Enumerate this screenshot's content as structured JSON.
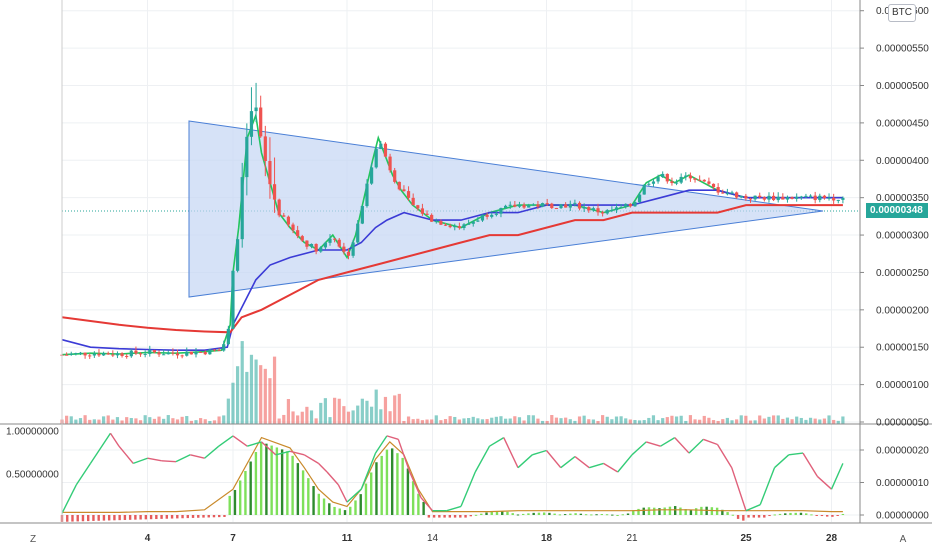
{
  "quote_currency": "BTC",
  "last_price": "0.00000348",
  "corner_buttons": {
    "left": "Z",
    "right": "A"
  },
  "main_axis": {
    "ticks": [
      "0.00000050",
      "0.00000100",
      "0.00000150",
      "0.00000200",
      "0.00000250",
      "0.00000300",
      "0.00000350",
      "0.00000400",
      "0.00000450",
      "0.00000500",
      "0.00000550",
      "0.00000600"
    ]
  },
  "osc_axis_right": {
    "ticks": [
      "0.00000000",
      "0.00000010",
      "0.00000020"
    ]
  },
  "osc_axis_left": {
    "ticks": [
      "1.00000000",
      "0.50000000"
    ]
  },
  "time_axis": {
    "labels": [
      "4",
      "7",
      "11",
      "14",
      "18",
      "21",
      "25",
      "28"
    ],
    "bold_labels": [
      "4",
      "7",
      "11",
      "18",
      "25",
      "28"
    ]
  },
  "colors": {
    "bull": "#26a69a",
    "bear": "#ef5350",
    "ma_fast": "#22c55e",
    "ma_mid": "#3b3bd6",
    "ma_slow": "#e53935",
    "triangle_fill": "#c5d6f4",
    "triangle_line": "#4a7fd6",
    "osc_up": "#33cc77",
    "osc_down": "#e0607a",
    "osc_slow": "#c98a2b",
    "hist_pos_bright": "#7ee05a",
    "hist_pos_dark": "#2e8b2e",
    "hist_neg": "#e55b5b"
  },
  "chart_data": [
    {
      "type": "line",
      "title": "",
      "ylim": [
        5e-07,
        6e-06
      ],
      "x_domain": [
        1,
        29
      ],
      "x_ticks": [
        4,
        7,
        11,
        14,
        18,
        21,
        25,
        28
      ],
      "grid": true,
      "series": [
        {
          "x": [
            1,
            2,
            3,
            4,
            5,
            6,
            6.6,
            6.9,
            7,
            7.2,
            7.5,
            7.8,
            8,
            8.3,
            8.6,
            9,
            9.5,
            10,
            10.5,
            11,
            11.3,
            11.6,
            11.9,
            12.1,
            12.3,
            12.6,
            12.9,
            13.3,
            14,
            15,
            16,
            17,
            18,
            19,
            20,
            21,
            21.5,
            22,
            22.5,
            23,
            23.5,
            24,
            25,
            26,
            27,
            28,
            28.4
          ],
          "values": [
            1.4e-06,
            1.42e-06,
            1.41e-06,
            1.43e-06,
            1.42e-06,
            1.44e-06,
            1.46e-06,
            1.8e-06,
            2.5e-06,
            3.1e-06,
            4.3e-06,
            4.6e-06,
            4.1e-06,
            3.7e-06,
            3.3e-06,
            3.1e-06,
            2.9e-06,
            2.8e-06,
            3e-06,
            2.7e-06,
            3e-06,
            3.5e-06,
            4e-06,
            4.3e-06,
            4.1e-06,
            3.8e-06,
            3.6e-06,
            3.4e-06,
            3.2e-06,
            3.1e-06,
            3.3e-06,
            3.4e-06,
            3.4e-06,
            3.4e-06,
            3.3e-06,
            3.4e-06,
            3.7e-06,
            3.8e-06,
            3.7e-06,
            3.8e-06,
            3.7e-06,
            3.6e-06,
            3.5e-06,
            3.5e-06,
            3.5e-06,
            3.5e-06,
            3.5e-06
          ]
        },
        {
          "x": [
            1,
            2,
            3,
            4,
            5,
            6,
            6.8,
            7,
            7.4,
            7.8,
            8.3,
            9,
            10,
            11,
            11.5,
            12,
            12.4,
            13,
            14,
            15,
            16,
            17,
            18,
            19,
            20,
            21,
            22,
            23,
            24,
            25,
            26,
            27,
            28,
            28.4
          ],
          "values": [
            1.6e-06,
            1.5e-06,
            1.48e-06,
            1.47e-06,
            1.46e-06,
            1.46e-06,
            1.5e-06,
            1.8e-06,
            2.1e-06,
            2.4e-06,
            2.6e-06,
            2.7e-06,
            2.8e-06,
            2.8e-06,
            2.9e-06,
            3.1e-06,
            3.2e-06,
            3.3e-06,
            3.2e-06,
            3.2e-06,
            3.3e-06,
            3.3e-06,
            3.4e-06,
            3.4e-06,
            3.4e-06,
            3.4e-06,
            3.5e-06,
            3.6e-06,
            3.6e-06,
            3.5e-06,
            3.5e-06,
            3.5e-06,
            3.5e-06,
            3.5e-06
          ]
        },
        {
          "x": [
            1,
            2,
            3,
            4,
            5,
            6,
            6.9,
            7.3,
            8,
            9,
            10,
            11,
            12,
            13,
            14,
            15,
            16,
            17,
            18,
            19,
            20,
            21,
            22,
            23,
            24,
            25,
            26,
            27,
            28,
            28.4
          ],
          "values": [
            1.9e-06,
            1.85e-06,
            1.8e-06,
            1.76e-06,
            1.73e-06,
            1.71e-06,
            1.7e-06,
            1.9e-06,
            2e-06,
            2.2e-06,
            2.4e-06,
            2.5e-06,
            2.6e-06,
            2.7e-06,
            2.8e-06,
            2.9e-06,
            3e-06,
            3e-06,
            3.1e-06,
            3.2e-06,
            3.2e-06,
            3.3e-06,
            3.3e-06,
            3.3e-06,
            3.3e-06,
            3.4e-06,
            3.4e-06,
            3.4e-06,
            3.4e-06,
            3.4e-06
          ]
        }
      ]
    },
    {
      "type": "line",
      "title": "",
      "ylim": [
        0,
        1.0
      ],
      "x_domain": [
        1,
        29
      ],
      "grid": true,
      "series": [
        {
          "x": [
            1,
            1.5,
            2,
            2.7,
            3,
            3.5,
            4,
            4.5,
            5,
            5.5,
            6,
            6.5,
            7,
            7.5,
            8,
            8.5,
            9,
            9.5,
            10,
            10.3,
            10.7,
            11,
            11.5,
            12,
            12.4,
            12.8,
            13.2,
            13.6,
            14,
            14.5,
            15,
            15.5,
            16,
            16.5,
            17,
            17.5,
            18,
            18.5,
            19,
            19.5,
            20,
            20.5,
            21,
            21.5,
            22,
            22.5,
            23,
            23.5,
            24,
            24.5,
            25,
            25.5,
            26,
            26.5,
            27,
            27.5,
            28,
            28.4
          ],
          "values": [
            0.02,
            0.35,
            0.6,
            0.95,
            0.8,
            0.6,
            0.66,
            0.63,
            0.62,
            0.7,
            0.66,
            0.8,
            0.92,
            0.8,
            0.85,
            0.7,
            0.74,
            0.7,
            0.6,
            0.5,
            0.35,
            0.15,
            0.3,
            0.72,
            0.92,
            0.88,
            0.5,
            0.2,
            0.05,
            0.05,
            0.1,
            0.5,
            0.8,
            0.9,
            0.55,
            0.7,
            0.75,
            0.55,
            0.68,
            0.55,
            0.6,
            0.5,
            0.7,
            0.85,
            0.8,
            0.9,
            0.72,
            0.88,
            0.82,
            0.55,
            0.05,
            0.12,
            0.55,
            0.7,
            0.72,
            0.45,
            0.3,
            0.6
          ]
        },
        {
          "x": [
            1,
            2,
            3,
            4,
            5,
            6,
            7,
            8,
            9,
            9.5,
            10,
            10.5,
            11,
            11.5,
            12,
            12.5,
            13,
            13.5,
            14,
            15,
            16,
            17,
            18,
            19,
            20,
            21,
            22,
            23,
            24,
            25,
            26,
            27,
            28,
            28.4
          ],
          "values": [
            0.03,
            0.03,
            0.03,
            0.04,
            0.04,
            0.06,
            0.3,
            0.9,
            0.78,
            0.55,
            0.3,
            0.15,
            0.1,
            0.3,
            0.65,
            0.85,
            0.7,
            0.3,
            0.04,
            0.04,
            0.04,
            0.05,
            0.05,
            0.05,
            0.05,
            0.05,
            0.06,
            0.06,
            0.05,
            0.05,
            0.05,
            0.05,
            0.04,
            0.04
          ]
        }
      ]
    }
  ]
}
